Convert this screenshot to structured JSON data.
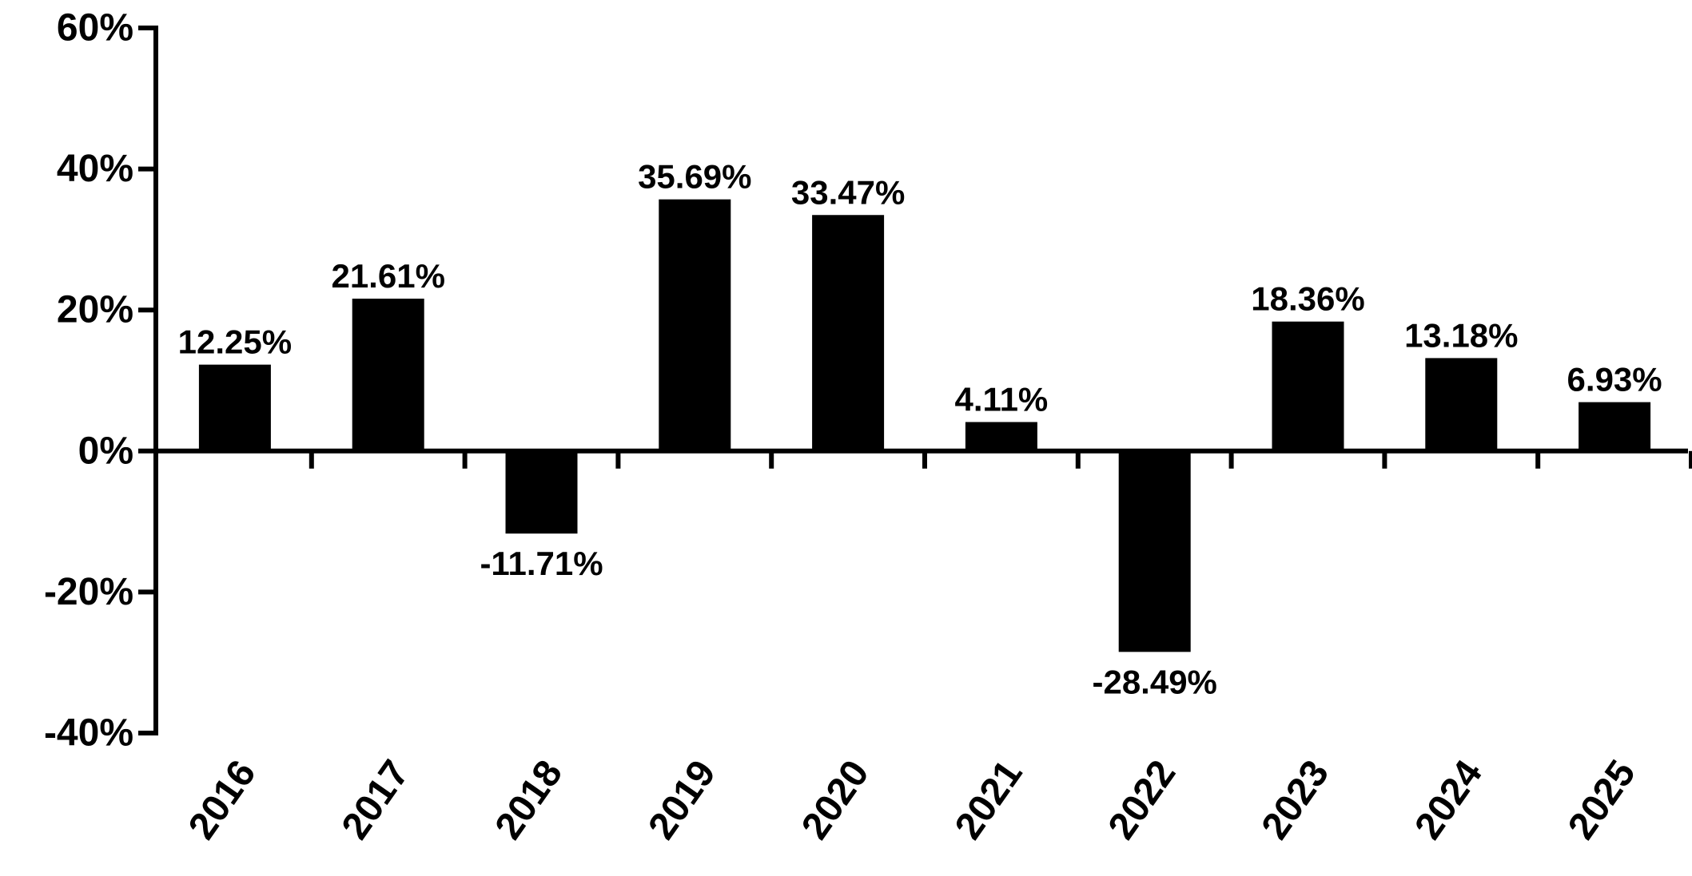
{
  "chart_data": {
    "type": "bar",
    "title": "",
    "xlabel": "",
    "ylabel": "",
    "categories": [
      "2016",
      "2017",
      "2018",
      "2019",
      "2020",
      "2021",
      "2022",
      "2023",
      "2024",
      "2025"
    ],
    "values": [
      12.25,
      21.61,
      -11.71,
      35.69,
      33.47,
      4.11,
      -28.49,
      18.36,
      13.18,
      6.93
    ],
    "value_labels": [
      "12.25%",
      "21.61%",
      "-11.71%",
      "35.69%",
      "33.47%",
      "4.11%",
      "-28.49%",
      "18.36%",
      "13.18%",
      "6.93%"
    ],
    "ylim": [
      -40,
      60
    ],
    "y_ticks": [
      60,
      40,
      20,
      0,
      -20,
      -40
    ],
    "y_tick_labels": [
      "60%",
      "40%",
      "20%",
      "0%",
      "-20%",
      "-40%"
    ],
    "grid": false,
    "legend": "none",
    "bar_color": "#000000"
  }
}
